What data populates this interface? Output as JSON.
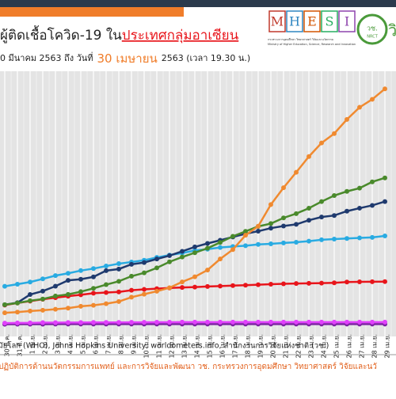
{
  "header": {
    "title_part1": "ผู้ติดเชื้อโควิด-19 ใน",
    "title_part2": "ประเทศกลุ่มอาเซียน",
    "subtitle_part1": "0 มีนาคม 2563 ถึง วันที่",
    "subtitle_highlight": "30 เมษายน",
    "subtitle_part2": "2563 (เวลา 19.30 น.)",
    "logo_letters": [
      "M",
      "H",
      "E",
      "S",
      "I"
    ],
    "logo_caption_th": "กระทรวงการอุดมศึกษา วิทยาศาสตร์ วิจัยและนวัตกรรม",
    "logo_caption_en": "Ministry of Higher Education, Science, Research and Innovation",
    "seal_text": "วช.",
    "seal_sub": "NRCT",
    "edge_text": "วิ"
  },
  "chart_data": {
    "type": "line",
    "categories": [
      "30 มี.ค.",
      "31 มี.ค.",
      "1 เม.ย.",
      "2 เม.ย.",
      "3 เม.ย.",
      "4 เม.ย.",
      "5 เม.ย.",
      "6 เม.ย.",
      "7 เม.ย.",
      "8 เม.ย.",
      "9 เม.ย.",
      "10 เม.ย.",
      "11 เม.ย.",
      "12 เม.ย.",
      "13 เม.ย.",
      "14 เม.ย.",
      "15 เม.ย.",
      "16 เม.ย.",
      "17 เม.ย.",
      "18 เม.ย.",
      "19 เม.ย.",
      "20 เม.ย.",
      "21 เม.ย.",
      "22 เม.ย.",
      "23 เม.ย.",
      "24 เม.ย.",
      "25 เม.ย.",
      "26 เม.ย.",
      "27 เม.ย.",
      "28 เม.ย.",
      "29 เม.ย."
    ],
    "ylim": [
      0,
      16800
    ],
    "grid": true,
    "series": [
      {
        "color": "#7b1fa2",
        "values": [
          127,
          129,
          131,
          133,
          134,
          135,
          135,
          135,
          135,
          135,
          136,
          136,
          136,
          136,
          136,
          136,
          136,
          137,
          137,
          138,
          138,
          138,
          138,
          138,
          138,
          138,
          138,
          138,
          138,
          138,
          138
        ]
      },
      {
        "color": "#e040fb",
        "values": [
          203,
          212,
          218,
          233,
          237,
          240,
          241,
          245,
          249,
          251,
          255,
          257,
          258,
          262,
          265,
          266,
          267,
          268,
          268,
          268,
          268,
          268,
          268,
          268,
          268,
          270,
          270,
          270,
          270,
          270,
          270
        ]
      },
      {
        "color": "#e8151b",
        "values": [
          1388,
          1524,
          1651,
          1771,
          1875,
          1978,
          2067,
          2169,
          2220,
          2258,
          2369,
          2423,
          2473,
          2518,
          2551,
          2579,
          2613,
          2643,
          2672,
          2700,
          2733,
          2765,
          2792,
          2811,
          2826,
          2839,
          2854,
          2907,
          2922,
          2931,
          2938
        ]
      },
      {
        "color": "#29abe2",
        "values": [
          2626,
          2766,
          2908,
          3116,
          3333,
          3483,
          3662,
          3793,
          3963,
          4119,
          4228,
          4346,
          4530,
          4683,
          4817,
          4987,
          5072,
          5182,
          5251,
          5305,
          5389,
          5425,
          5482,
          5532,
          5603,
          5691,
          5742,
          5780,
          5820,
          5851,
          5945
        ]
      },
      {
        "color": "#1f3a6e",
        "values": [
          1418,
          1546,
          2084,
          2311,
          2633,
          3018,
          3094,
          3246,
          3660,
          3764,
          4076,
          4195,
          4428,
          4648,
          4932,
          5223,
          5453,
          5660,
          5878,
          6087,
          6259,
          6459,
          6599,
          6710,
          6981,
          7192,
          7294,
          7579,
          7777,
          7958,
          8212
        ]
      },
      {
        "color": "#4a8a2c",
        "values": [
          1414,
          1528,
          1677,
          1790,
          1986,
          2092,
          2273,
          2491,
          2738,
          2956,
          3293,
          3512,
          3842,
          4241,
          4557,
          4839,
          5136,
          5516,
          5923,
          6248,
          6575,
          6760,
          7135,
          7418,
          7775,
          8211,
          8607,
          8882,
          9096,
          9511,
          9771
        ]
      },
      {
        "color": "#f08a30",
        "values": [
          879,
          926,
          1000,
          1049,
          1114,
          1189,
          1309,
          1375,
          1481,
          1623,
          1910,
          2108,
          2299,
          2532,
          2918,
          3252,
          3699,
          4427,
          5050,
          5992,
          6588,
          8014,
          9125,
          10141,
          11178,
          12075,
          12693,
          13624,
          14423,
          14951,
          15641
        ]
      }
    ]
  },
  "footer": {
    "sources": "อนามัยโลก (WHO), Johns Hopkins University, worldometers.info, สำนักงานการวิจัยแห่งชาติ (วช.)",
    "credit": "ปฏิบัติการด้านนวัตกรรมการแพทย์ และการวิจัยและพัฒนา  วช.  กระทรวงการอุดมศึกษา วิทยาศาสตร์ วิจัยและนวั"
  }
}
